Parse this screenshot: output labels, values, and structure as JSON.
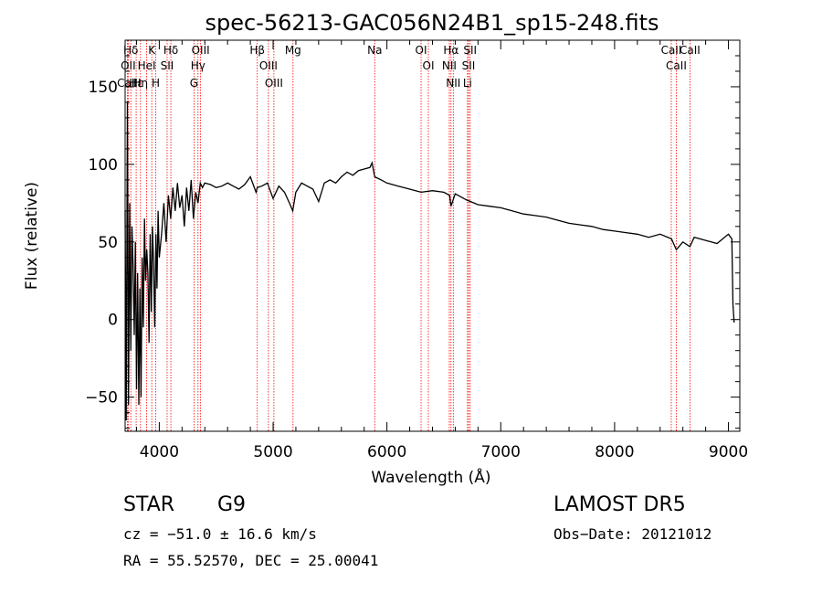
{
  "chart_data": {
    "type": "line",
    "title": "spec-56213-GAC056N24B1_sp15-248.fits",
    "xlabel": "Wavelength (Å)",
    "ylabel": "Flux (relative)",
    "xlim": [
      3700,
      9100
    ],
    "ylim": [
      -72,
      180
    ],
    "xticks": [
      4000,
      5000,
      6000,
      7000,
      8000,
      9000
    ],
    "yticks": [
      -50,
      0,
      50,
      100,
      150
    ],
    "grid": false,
    "line_color": "#000000",
    "marker_color": "#ff0000",
    "series": [
      {
        "x": [
          3700,
          3710,
          3720,
          3730,
          3740,
          3750,
          3760,
          3770,
          3780,
          3790,
          3800,
          3810,
          3820,
          3830,
          3840,
          3850,
          3860,
          3870,
          3880,
          3890,
          3900,
          3910,
          3920,
          3930,
          3940,
          3950,
          3960,
          3970,
          3980,
          3990,
          4000,
          4020,
          4040,
          4060,
          4080,
          4100,
          4120,
          4140,
          4160,
          4180,
          4200,
          4220,
          4240,
          4260,
          4280,
          4300,
          4320,
          4340,
          4360,
          4380,
          4400,
          4450,
          4500,
          4550,
          4600,
          4650,
          4700,
          4750,
          4800,
          4850,
          4861,
          4900,
          4950,
          5000,
          5050,
          5100,
          5150,
          5172,
          5200,
          5250,
          5300,
          5350,
          5400,
          5450,
          5500,
          5550,
          5600,
          5650,
          5700,
          5750,
          5800,
          5850,
          5870,
          5893,
          5950,
          6000,
          6100,
          6200,
          6300,
          6400,
          6500,
          6550,
          6563,
          6600,
          6700,
          6800,
          6900,
          7000,
          7100,
          7200,
          7300,
          7400,
          7500,
          7600,
          7700,
          7800,
          7900,
          8000,
          8100,
          8200,
          8300,
          8400,
          8500,
          8542,
          8600,
          8662,
          8700,
          8800,
          8900,
          9000,
          9030,
          9040,
          9050
        ],
        "y": [
          70,
          -65,
          140,
          -55,
          75,
          -20,
          60,
          35,
          -10,
          50,
          -45,
          30,
          -55,
          20,
          -50,
          40,
          -5,
          65,
          25,
          45,
          30,
          -15,
          55,
          5,
          60,
          35,
          -5,
          55,
          20,
          70,
          40,
          55,
          75,
          50,
          80,
          65,
          85,
          70,
          88,
          72,
          80,
          60,
          85,
          70,
          90,
          65,
          82,
          75,
          88,
          85,
          88,
          87,
          85,
          86,
          88,
          86,
          84,
          87,
          92,
          82,
          85,
          86,
          88,
          78,
          86,
          82,
          74,
          70,
          82,
          88,
          86,
          84,
          76,
          88,
          90,
          88,
          92,
          95,
          93,
          96,
          97,
          98,
          101,
          92,
          90,
          88,
          86,
          84,
          82,
          83,
          82,
          80,
          73,
          81,
          77,
          74,
          73,
          72,
          70,
          68,
          67,
          66,
          64,
          62,
          61,
          60,
          58,
          57,
          56,
          55,
          53,
          55,
          52,
          45,
          50,
          47,
          53,
          51,
          49,
          55,
          52,
          10,
          -2
        ]
      }
    ],
    "lines": [
      {
        "name": "Hδ",
        "x": 3750
      },
      {
        "name": "OII",
        "x": 3727
      },
      {
        "name": "CaII",
        "x": 3720
      },
      {
        "name": "Hε",
        "x": 3797
      },
      {
        "name": "K",
        "x": 3934
      },
      {
        "name": "HeI",
        "x": 3889
      },
      {
        "name": "SII",
        "x": 4069
      },
      {
        "name": "Hη",
        "x": 3835
      },
      {
        "name": "H",
        "x": 3969
      },
      {
        "name": "Hδ",
        "x": 4102
      },
      {
        "name": "OIII",
        "x": 4363
      },
      {
        "name": "Hγ",
        "x": 4340
      },
      {
        "name": "G",
        "x": 4305
      },
      {
        "name": "Hβ",
        "x": 4861
      },
      {
        "name": "OIII",
        "x": 4959
      },
      {
        "name": "OIII",
        "x": 5007
      },
      {
        "name": "Mg",
        "x": 5175
      },
      {
        "name": "Na",
        "x": 5893
      },
      {
        "name": "OI",
        "x": 6300
      },
      {
        "name": "OI",
        "x": 6364
      },
      {
        "name": "Hα",
        "x": 6563
      },
      {
        "name": "NII",
        "x": 6548
      },
      {
        "name": "NII",
        "x": 6583
      },
      {
        "name": "SII",
        "x": 6717
      },
      {
        "name": "Li",
        "x": 6708
      },
      {
        "name": "SII",
        "x": 6731
      },
      {
        "name": "CaII",
        "x": 8498
      },
      {
        "name": "CaII",
        "x": 8542
      },
      {
        "name": "CaII",
        "x": 8662
      }
    ]
  },
  "info": {
    "object_class": "STAR",
    "subclass": "G9",
    "survey": "LAMOST DR5",
    "cz": "cz = −51.0 ± 16.6 km/s",
    "obs_date": "Obs−Date: 20121012",
    "coords": "RA =  55.52570, DEC =  25.00041"
  }
}
